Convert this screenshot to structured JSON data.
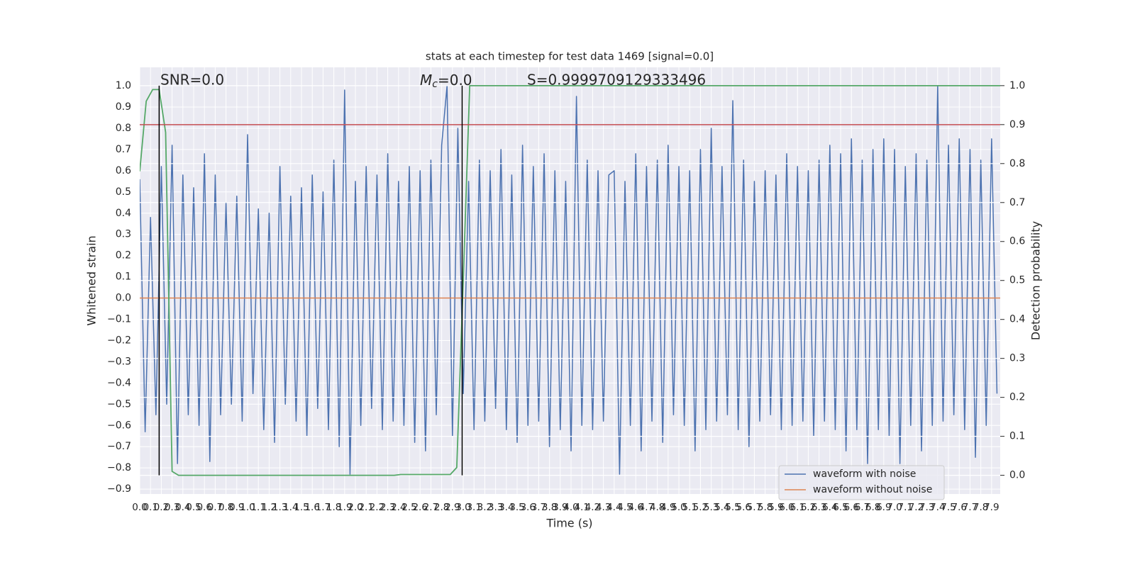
{
  "chart_data": {
    "type": "line",
    "title": "stats at each timestep for test data 1469 [signal=0.0]",
    "xlabel": "Time (s)",
    "ylabel": "Whitened strain",
    "y2label": "Detection probability",
    "annotations": {
      "snr": "SNR=0.0",
      "mc": {
        "symbol": "M",
        "subscript": "c",
        "text": "=0.0"
      },
      "s": "S=0.9999709129333496"
    },
    "xlim": [
      0,
      7.98
    ],
    "ylim": [
      -0.923,
      1.087
    ],
    "y2lim": [
      -0.048,
      1.047
    ],
    "xticks": [
      {
        "value": 0,
        "label": "0.0"
      },
      0.1,
      0.2,
      0.3,
      0.4,
      0.5,
      0.6,
      0.7,
      0.8,
      0.9,
      {
        "value": 1,
        "label": "1.0"
      },
      1.1,
      1.2,
      1.3,
      1.4,
      1.5,
      1.6,
      1.7,
      1.8,
      1.9,
      {
        "value": 2,
        "label": "2.0"
      },
      2.1,
      2.2,
      2.3,
      2.4,
      2.5,
      2.6,
      2.7,
      2.8,
      2.9,
      {
        "value": 3,
        "label": "3.0"
      },
      3.1,
      3.2,
      3.3,
      3.4,
      3.5,
      3.6,
      3.7,
      3.8,
      3.9,
      {
        "value": 4,
        "label": "4.0"
      },
      4.1,
      4.2,
      4.3,
      4.4,
      4.5,
      4.6,
      4.7,
      4.8,
      4.9,
      {
        "value": 5,
        "label": "5.0"
      },
      5.1,
      5.2,
      5.3,
      5.4,
      5.5,
      5.6,
      5.7,
      5.8,
      5.9,
      {
        "value": 6,
        "label": "6.0"
      },
      6.1,
      6.2,
      6.3,
      6.4,
      6.5,
      6.6,
      6.7,
      6.8,
      6.9,
      {
        "value": 7,
        "label": "7.0"
      },
      7.1,
      7.2,
      7.3,
      7.4,
      7.5,
      7.6,
      7.7,
      7.8,
      7.9
    ],
    "yticks": [
      {
        "value": 1,
        "label": "1.0"
      },
      0.9,
      0.8,
      0.7,
      0.6,
      0.5,
      0.4,
      0.3,
      0.2,
      0.1,
      {
        "value": 0,
        "label": "0.0"
      },
      {
        "value": -0.1,
        "label": "−0.1"
      },
      {
        "value": -0.2,
        "label": "−0.2"
      },
      {
        "value": -0.3,
        "label": "−0.3"
      },
      {
        "value": -0.4,
        "label": "−0.4"
      },
      {
        "value": -0.5,
        "label": "−0.5"
      },
      {
        "value": -0.6,
        "label": "−0.6"
      },
      {
        "value": -0.7,
        "label": "−0.7"
      },
      {
        "value": -0.8,
        "label": "−0.8"
      },
      {
        "value": -0.9,
        "label": "−0.9"
      }
    ],
    "y2ticks": [
      {
        "value": 0,
        "label": "0.0"
      },
      0.1,
      0.2,
      0.3,
      0.4,
      0.5,
      0.6,
      0.7,
      0.8,
      0.9,
      {
        "value": 1,
        "label": "1.0"
      }
    ],
    "grid": true,
    "legend": "lower right",
    "series": [
      {
        "name": "waveform with noise",
        "color": "#4c72b0",
        "x": [
          0,
          0.05,
          0.1,
          0.15,
          0.2,
          0.25,
          0.3,
          0.35,
          0.4,
          0.45,
          0.5,
          0.55,
          0.6,
          0.65,
          0.7,
          0.75,
          0.8,
          0.85,
          0.9,
          0.95,
          1,
          1.05,
          1.1,
          1.15,
          1.2,
          1.25,
          1.3,
          1.35,
          1.4,
          1.45,
          1.5,
          1.55,
          1.6,
          1.65,
          1.7,
          1.75,
          1.8,
          1.85,
          1.9,
          1.95,
          2,
          2.05,
          2.1,
          2.15,
          2.2,
          2.25,
          2.3,
          2.35,
          2.4,
          2.45,
          2.5,
          2.55,
          2.6,
          2.65,
          2.7,
          2.75,
          2.8,
          2.85,
          2.9,
          2.95,
          3,
          3.05,
          3.1,
          3.15,
          3.2,
          3.25,
          3.3,
          3.35,
          3.4,
          3.45,
          3.5,
          3.55,
          3.6,
          3.65,
          3.7,
          3.75,
          3.8,
          3.85,
          3.9,
          3.95,
          4,
          4.05,
          4.1,
          4.15,
          4.2,
          4.25,
          4.3,
          4.35,
          4.4,
          4.45,
          4.5,
          4.55,
          4.6,
          4.65,
          4.7,
          4.75,
          4.8,
          4.85,
          4.9,
          4.95,
          5,
          5.05,
          5.1,
          5.15,
          5.2,
          5.25,
          5.3,
          5.35,
          5.4,
          5.45,
          5.5,
          5.55,
          5.6,
          5.65,
          5.7,
          5.75,
          5.8,
          5.85,
          5.9,
          5.95,
          6,
          6.05,
          6.1,
          6.15,
          6.2,
          6.25,
          6.3,
          6.35,
          6.4,
          6.45,
          6.5,
          6.55,
          6.6,
          6.65,
          6.7,
          6.75,
          6.8,
          6.85,
          6.9,
          6.95,
          7,
          7.05,
          7.1,
          7.15,
          7.2,
          7.25,
          7.3,
          7.35,
          7.4,
          7.45,
          7.5,
          7.55,
          7.6,
          7.65,
          7.7,
          7.75,
          7.8,
          7.85,
          7.9,
          7.95
        ],
        "values": [
          0.56,
          -0.63,
          0.38,
          -0.55,
          0.62,
          -0.5,
          0.72,
          -0.78,
          0.58,
          -0.55,
          0.52,
          -0.6,
          0.68,
          -0.77,
          0.58,
          -0.55,
          0.45,
          -0.5,
          0.48,
          -0.58,
          0.77,
          -0.45,
          0.42,
          -0.62,
          0.4,
          -0.68,
          0.62,
          -0.5,
          0.48,
          -0.58,
          0.52,
          -0.65,
          0.58,
          -0.52,
          0.5,
          -0.62,
          0.65,
          -0.7,
          0.98,
          -0.83,
          0.55,
          -0.6,
          0.62,
          -0.52,
          0.58,
          -0.62,
          0.68,
          -0.58,
          0.55,
          -0.6,
          0.62,
          -0.68,
          0.6,
          -0.72,
          0.65,
          -0.55,
          0.72,
          1.0,
          -0.65,
          0.8,
          -0.45,
          0.55,
          -0.62,
          0.65,
          -0.58,
          0.6,
          -0.52,
          0.7,
          -0.62,
          0.58,
          -0.68,
          0.72,
          -0.6,
          0.62,
          -0.58,
          0.68,
          -0.7,
          0.6,
          -0.62,
          0.55,
          -0.72,
          0.95,
          -0.6,
          0.65,
          -0.62,
          0.6,
          -0.58,
          0.58,
          0.6,
          -0.83,
          0.55,
          -0.6,
          0.68,
          -0.72,
          0.62,
          -0.58,
          0.65,
          -0.68,
          0.72,
          -0.55,
          0.62,
          -0.6,
          0.6,
          -0.72,
          0.7,
          -0.62,
          0.8,
          -0.58,
          0.62,
          -0.55,
          0.93,
          -0.62,
          0.65,
          -0.7,
          0.55,
          -0.58,
          0.6,
          -0.55,
          0.58,
          -0.62,
          0.68,
          -0.6,
          0.62,
          -0.58,
          0.6,
          -0.65,
          0.65,
          -0.58,
          0.72,
          -0.62,
          0.68,
          -0.72,
          0.75,
          -0.62,
          0.65,
          -0.78,
          0.7,
          -0.62,
          0.75,
          -0.65,
          0.7,
          -0.78,
          0.62,
          -0.6,
          0.68,
          -0.72,
          0.65,
          -0.6,
          1.0,
          -0.58,
          0.72,
          -0.55,
          0.75,
          -0.62,
          0.7,
          -0.75,
          0.65,
          -0.6,
          0.75,
          -0.45
        ]
      },
      {
        "name": "waveform without noise",
        "color": "#dd8452",
        "x": [
          0,
          7.98
        ],
        "values": [
          0,
          0
        ]
      }
    ],
    "probability": {
      "color": "#55a868",
      "axis": "y2",
      "x": [
        0,
        0.06,
        0.12,
        0.18,
        0.24,
        0.3,
        0.36,
        2.36,
        2.42,
        2.88,
        2.94,
        3.0,
        3.06,
        7.98
      ],
      "values": [
        0.78,
        0.96,
        0.99,
        0.99,
        0.88,
        0.01,
        0,
        0,
        0.002,
        0.002,
        0.02,
        0.5,
        1,
        1
      ]
    },
    "threshold": {
      "value": 0.9,
      "color": "#c44e52",
      "axis": "y2"
    },
    "markers": {
      "x": [
        0.18,
        2.99
      ],
      "color": "#000000"
    }
  }
}
